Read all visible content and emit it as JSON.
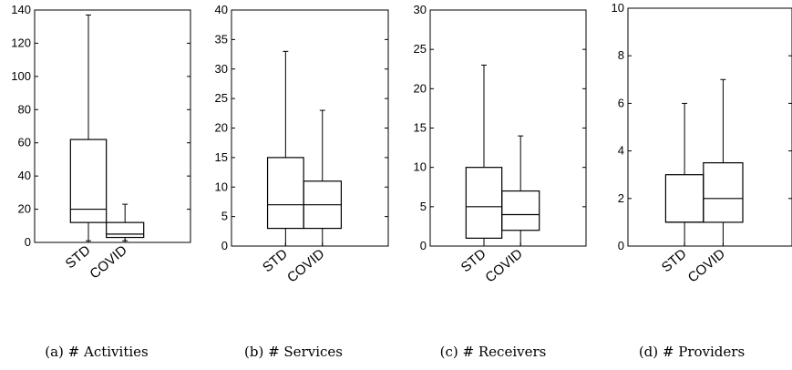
{
  "chart_data": [
    {
      "type": "box",
      "caption": "(a) # Activities",
      "categories": [
        "STD",
        "COVID"
      ],
      "ylim": [
        0,
        140
      ],
      "yticks": [
        0,
        20,
        40,
        60,
        80,
        100,
        120,
        140
      ],
      "boxes": [
        {
          "name": "STD",
          "min": 1,
          "q1": 12,
          "median": 20,
          "q3": 62,
          "max": 137
        },
        {
          "name": "COVID",
          "min": 1,
          "q1": 3,
          "median": 5,
          "q3": 12,
          "max": 23
        }
      ]
    },
    {
      "type": "box",
      "caption": "(b) # Services",
      "categories": [
        "STD",
        "COVID"
      ],
      "ylim": [
        0,
        40
      ],
      "yticks": [
        0,
        5,
        10,
        15,
        20,
        25,
        30,
        35,
        40
      ],
      "boxes": [
        {
          "name": "STD",
          "min": 0,
          "q1": 3,
          "median": 7,
          "q3": 15,
          "max": 33
        },
        {
          "name": "COVID",
          "min": 0,
          "q1": 3,
          "median": 7,
          "q3": 11,
          "max": 23
        }
      ]
    },
    {
      "type": "box",
      "caption": "(c) # Receivers",
      "categories": [
        "STD",
        "COVID"
      ],
      "ylim": [
        0,
        30
      ],
      "yticks": [
        0,
        5,
        10,
        15,
        20,
        25,
        30
      ],
      "boxes": [
        {
          "name": "STD",
          "min": 0,
          "q1": 1,
          "median": 5,
          "q3": 10,
          "max": 23
        },
        {
          "name": "COVID",
          "min": 0,
          "q1": 2,
          "median": 4,
          "q3": 7,
          "max": 14
        }
      ]
    },
    {
      "type": "box",
      "caption": "(d) # Providers",
      "categories": [
        "STD",
        "COVID"
      ],
      "ylim": [
        0,
        10
      ],
      "yticks": [
        0,
        2,
        4,
        6,
        8,
        10
      ],
      "boxes": [
        {
          "name": "STD",
          "min": 0,
          "q1": 1,
          "median": 1,
          "q3": 3,
          "max": 6
        },
        {
          "name": "COVID",
          "min": 0,
          "q1": 1,
          "median": 2,
          "q3": 3.5,
          "max": 7
        }
      ]
    }
  ]
}
